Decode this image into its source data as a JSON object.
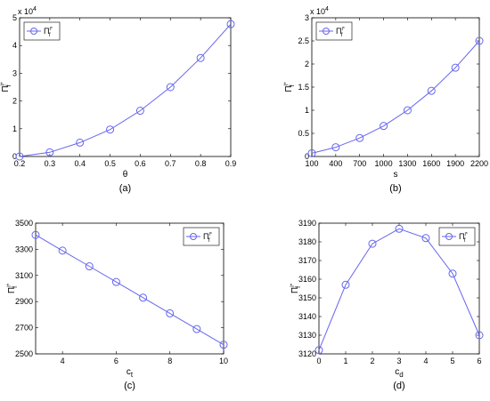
{
  "chart_data": [
    {
      "type": "line",
      "subfigure_label": "(a)",
      "xlabel": "θ",
      "ylabel_main": "Π",
      "ylabel_sub": "f",
      "ylabel_sup": "I*",
      "multiplier": "x 10",
      "multiplier_exp": "4",
      "x": [
        0.2,
        0.3,
        0.4,
        0.5,
        0.6,
        0.7,
        0.8,
        0.9
      ],
      "series": [
        {
          "name_main": "Π",
          "name_sub": "f",
          "name_sup": "I*",
          "values": [
            0.0,
            0.15,
            0.5,
            0.97,
            1.65,
            2.5,
            3.55,
            4.77
          ]
        }
      ],
      "xlim": [
        0.2,
        0.9
      ],
      "ylim": [
        0,
        5
      ],
      "xticks": [
        0.2,
        0.3,
        0.4,
        0.5,
        0.6,
        0.7,
        0.8,
        0.9
      ],
      "xtick_labels": [
        "0.2",
        "0.3",
        "0.4",
        "0.5",
        "0.6",
        "0.7",
        "0.8",
        "0.9"
      ],
      "yticks": [
        0,
        1,
        2,
        3,
        4,
        5
      ],
      "ytick_labels": [
        "0",
        "1",
        "2",
        "3",
        "4",
        "5"
      ],
      "legend_position": "top-left",
      "grid": false,
      "line_color": "#6666ee"
    },
    {
      "type": "line",
      "subfigure_label": "(b)",
      "xlabel": "s",
      "ylabel_main": "Π",
      "ylabel_sub": "f",
      "ylabel_sup": "I*",
      "multiplier": "x 10",
      "multiplier_exp": "4",
      "x": [
        100,
        400,
        700,
        1000,
        1300,
        1600,
        1900,
        2200
      ],
      "series": [
        {
          "name_main": "Π",
          "name_sub": "f",
          "name_sup": "I*",
          "values": [
            0.07,
            0.2,
            0.4,
            0.66,
            1.0,
            1.42,
            1.92,
            2.5
          ]
        }
      ],
      "xlim": [
        100,
        2200
      ],
      "ylim": [
        0,
        3
      ],
      "xticks": [
        100,
        400,
        700,
        1000,
        1300,
        1600,
        1900,
        2200
      ],
      "xtick_labels": [
        "100",
        "400",
        "700",
        "1000",
        "1300",
        "1600",
        "1900",
        "2200"
      ],
      "yticks": [
        0,
        0.5,
        1,
        1.5,
        2,
        2.5,
        3
      ],
      "ytick_labels": [
        "0",
        "0.5",
        "1",
        "1.5",
        "2",
        "2.5",
        "3"
      ],
      "legend_position": "top-left",
      "grid": false,
      "line_color": "#6666ee"
    },
    {
      "type": "line",
      "subfigure_label": "(c)",
      "xlabel_main": "c",
      "xlabel_sub": "t",
      "ylabel_main": "Π",
      "ylabel_sub": "f",
      "ylabel_sup": "I*",
      "x": [
        3,
        4,
        5,
        6,
        7,
        8,
        9,
        10
      ],
      "series": [
        {
          "name_main": "Π",
          "name_sub": "f",
          "name_sup": "I*",
          "values": [
            3410,
            3290,
            3170,
            3050,
            2930,
            2810,
            2690,
            2570
          ]
        }
      ],
      "xlim": [
        3,
        10
      ],
      "ylim": [
        2500,
        3500
      ],
      "xticks": [
        4,
        6,
        8,
        10
      ],
      "xtick_labels": [
        "4",
        "6",
        "8",
        "10"
      ],
      "yticks": [
        2500,
        2700,
        2900,
        3100,
        3300,
        3500
      ],
      "ytick_labels": [
        "2500",
        "2700",
        "2900",
        "3100",
        "3300",
        "3500"
      ],
      "legend_position": "top-right",
      "grid": false,
      "line_color": "#6666ee"
    },
    {
      "type": "line",
      "subfigure_label": "(d)",
      "xlabel_main": "c",
      "xlabel_sub": "d",
      "ylabel_main": "Π",
      "ylabel_sub": "f",
      "ylabel_sup": "I*",
      "x": [
        0,
        1,
        2,
        3,
        4,
        5,
        6
      ],
      "series": [
        {
          "name_main": "Π",
          "name_sub": "f",
          "name_sup": "I*",
          "values": [
            3122,
            3157,
            3179,
            3187,
            3182,
            3163,
            3130
          ]
        }
      ],
      "xlim": [
        0,
        6
      ],
      "ylim": [
        3120,
        3190
      ],
      "xticks": [
        0,
        1,
        2,
        3,
        4,
        5,
        6
      ],
      "xtick_labels": [
        "0",
        "1",
        "2",
        "3",
        "4",
        "5",
        "6"
      ],
      "yticks": [
        3120,
        3130,
        3140,
        3150,
        3160,
        3170,
        3180,
        3190
      ],
      "ytick_labels": [
        "3120",
        "3130",
        "3140",
        "3150",
        "3160",
        "3170",
        "3180",
        "3190"
      ],
      "legend_position": "top-right",
      "grid": false,
      "line_color": "#6666ee"
    }
  ]
}
